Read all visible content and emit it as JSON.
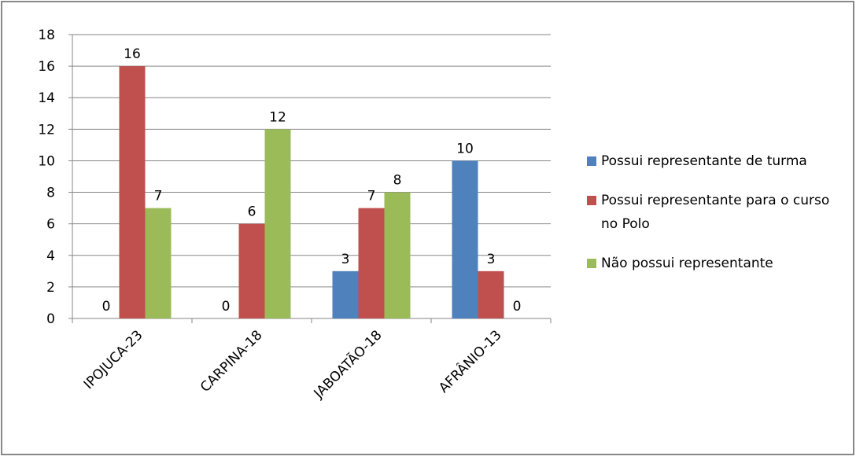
{
  "chart_data": {
    "type": "bar",
    "categories": [
      "IPOJUCA-23",
      "CARPINA-18",
      "JABOATÃO-18",
      "AFRÂNIO-13"
    ],
    "series": [
      {
        "name": "Possui representante de turma",
        "color": "#4f81bd",
        "values": [
          0,
          0,
          3,
          10
        ]
      },
      {
        "name": "Possui representante para o curso no Polo",
        "color": "#c0504d",
        "values": [
          16,
          6,
          7,
          3
        ]
      },
      {
        "name": "Não possui representante",
        "color": "#9bbb59",
        "values": [
          7,
          12,
          8,
          0
        ]
      }
    ],
    "ylim": [
      0,
      18
    ],
    "yticks": [
      0,
      2,
      4,
      6,
      8,
      10,
      12,
      14,
      16,
      18
    ],
    "grid": true,
    "legend": "right"
  }
}
